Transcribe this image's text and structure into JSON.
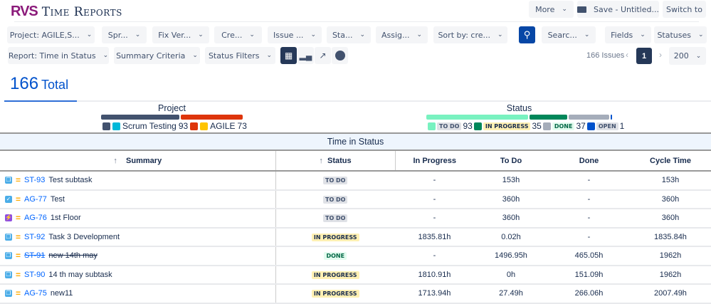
{
  "app": {
    "logo": "RVS",
    "title": "Time Reports"
  },
  "top_actions": {
    "more": "More",
    "save": "Save - Untitled...",
    "switch": "Switch to"
  },
  "filters": [
    {
      "label": "Project: AGILE,S..."
    },
    {
      "label": "Spr..."
    },
    {
      "label": "Fix Ver..."
    },
    {
      "label": "Cre..."
    },
    {
      "label": "Issue ..."
    },
    {
      "label": "Sta..."
    },
    {
      "label": "Assig..."
    },
    {
      "label": "Sort by: cre..."
    }
  ],
  "search_filter": "Searc...",
  "fields": "Fields",
  "statuses": "Statuses",
  "row2": {
    "report": "Report: Time in Status",
    "summary_criteria": "Summary Criteria",
    "status_filters": "Status Filters"
  },
  "pagination": {
    "count": "166 Issues",
    "page": "1",
    "per_page": "200"
  },
  "total": {
    "number": "166",
    "label": "Total"
  },
  "project_summary": {
    "title": "Project",
    "items": [
      {
        "name": "Scrum Testing",
        "count": "93",
        "color": "#42526e",
        "share": 93
      },
      {
        "name": "AGILE",
        "count": "73",
        "color": "#de350b",
        "share": 73
      }
    ]
  },
  "status_summary": {
    "title": "Status",
    "items": [
      {
        "name": "TO DO",
        "count": "93",
        "color": "#79f2c0",
        "cls": "todo"
      },
      {
        "name": "IN PROGRESS",
        "count": "35",
        "color": "#00875a",
        "cls": "inp"
      },
      {
        "name": "DONE",
        "count": "37",
        "color": "#a5adba",
        "cls": "done"
      },
      {
        "name": "OPEN",
        "count": "1",
        "color": "#0052cc",
        "cls": "open"
      }
    ]
  },
  "table": {
    "group_title": "Time in Status",
    "columns": [
      "Summary",
      "Status",
      "In Progress",
      "To Do",
      "Done",
      "Cycle Time"
    ],
    "rows": [
      {
        "type": "subtask",
        "key": "ST-93",
        "summary": "Test subtask",
        "status": "TO DO",
        "cls": "todo",
        "in_progress": "-",
        "todo": "153h",
        "done": "-",
        "cycle": "153h"
      },
      {
        "type": "task",
        "key": "AG-77",
        "summary": "Test",
        "status": "TO DO",
        "cls": "todo",
        "in_progress": "-",
        "todo": "360h",
        "done": "-",
        "cycle": "360h"
      },
      {
        "type": "epic",
        "key": "AG-76",
        "summary": "1st Floor",
        "status": "TO DO",
        "cls": "todo",
        "in_progress": "-",
        "todo": "360h",
        "done": "-",
        "cycle": "360h"
      },
      {
        "type": "subtask",
        "key": "ST-92",
        "summary": "Task 3 Development",
        "status": "IN PROGRESS",
        "cls": "inp",
        "in_progress": "1835.81h",
        "todo": "0.02h",
        "done": "-",
        "cycle": "1835.84h"
      },
      {
        "type": "subtask",
        "key": "ST-91",
        "summary": "new 14th may",
        "status": "DONE",
        "cls": "done",
        "strike": true,
        "in_progress": "-",
        "todo": "1496.95h",
        "done": "465.05h",
        "cycle": "1962h"
      },
      {
        "type": "subtask",
        "key": "ST-90",
        "summary": "14 th may subtask",
        "status": "IN PROGRESS",
        "cls": "inp",
        "in_progress": "1810.91h",
        "todo": "0h",
        "done": "151.09h",
        "cycle": "1962h"
      },
      {
        "type": "subtask",
        "key": "AG-75",
        "summary": "new11",
        "status": "IN PROGRESS",
        "cls": "inp",
        "in_progress": "1713.94h",
        "todo": "27.49h",
        "done": "266.06h",
        "cycle": "2007.49h"
      }
    ]
  }
}
